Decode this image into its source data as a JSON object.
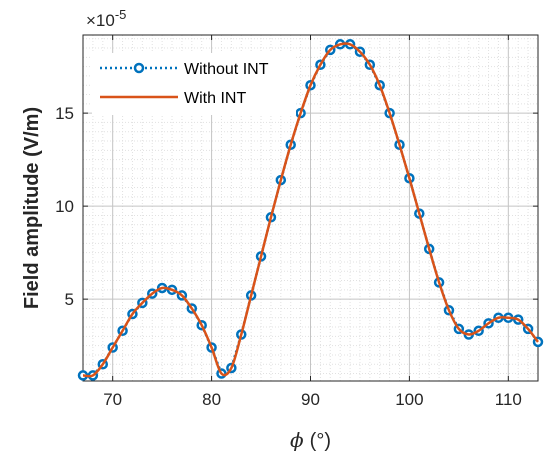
{
  "chart_data": {
    "type": "line",
    "xlabel_symbol": "ϕ",
    "xlabel_unit": "(°)",
    "ylabel": "Field amplitude (V/m)",
    "y_exponent_base": "×10",
    "y_exponent_power": "-5",
    "xlim": [
      67,
      113
    ],
    "ylim": [
      0.6,
      19.2
    ],
    "x_ticks": [
      70,
      80,
      90,
      100,
      110
    ],
    "y_ticks": [
      5,
      10,
      15
    ],
    "grid": "major-and-minor",
    "legend_position": "top-left",
    "series": [
      {
        "name": "Without INT",
        "style": "dotted-circles",
        "color": "#0072BD",
        "x": [
          67,
          68,
          69,
          70,
          71,
          72,
          73,
          74,
          75,
          76,
          77,
          78,
          79,
          80,
          81,
          82,
          83,
          84,
          85,
          86,
          87,
          88,
          89,
          90,
          91,
          92,
          93,
          94,
          95,
          96,
          97,
          98,
          99,
          100,
          101,
          102,
          103,
          104,
          105,
          106,
          107,
          108,
          109,
          110,
          111,
          112,
          113
        ],
        "y": [
          0.9,
          0.9,
          1.5,
          2.4,
          3.3,
          4.2,
          4.8,
          5.3,
          5.6,
          5.5,
          5.2,
          4.5,
          3.6,
          2.4,
          1.0,
          1.3,
          3.1,
          5.2,
          7.3,
          9.4,
          11.4,
          13.3,
          15.0,
          16.5,
          17.6,
          18.4,
          18.7,
          18.7,
          18.3,
          17.6,
          16.5,
          15.0,
          13.3,
          11.5,
          9.6,
          7.7,
          5.9,
          4.4,
          3.4,
          3.1,
          3.3,
          3.7,
          4.0,
          4.0,
          3.9,
          3.4,
          2.7
        ]
      },
      {
        "name": "With INT",
        "style": "solid",
        "color": "#D95319",
        "x": [
          67,
          68,
          69,
          70,
          71,
          72,
          73,
          74,
          75,
          76,
          77,
          78,
          79,
          80,
          81,
          82,
          83,
          84,
          85,
          86,
          87,
          88,
          89,
          90,
          91,
          92,
          93,
          94,
          95,
          96,
          97,
          98,
          99,
          100,
          101,
          102,
          103,
          104,
          105,
          106,
          107,
          108,
          109,
          110,
          111,
          112,
          113
        ],
        "y": [
          0.9,
          0.9,
          1.5,
          2.4,
          3.3,
          4.2,
          4.8,
          5.3,
          5.6,
          5.5,
          5.2,
          4.5,
          3.6,
          2.4,
          1.0,
          1.3,
          3.1,
          5.2,
          7.3,
          9.4,
          11.4,
          13.3,
          15.0,
          16.5,
          17.6,
          18.4,
          18.7,
          18.7,
          18.3,
          17.6,
          16.5,
          15.0,
          13.3,
          11.5,
          9.6,
          7.7,
          5.9,
          4.4,
          3.4,
          3.1,
          3.3,
          3.7,
          4.0,
          4.0,
          3.9,
          3.4,
          2.7
        ]
      }
    ]
  }
}
